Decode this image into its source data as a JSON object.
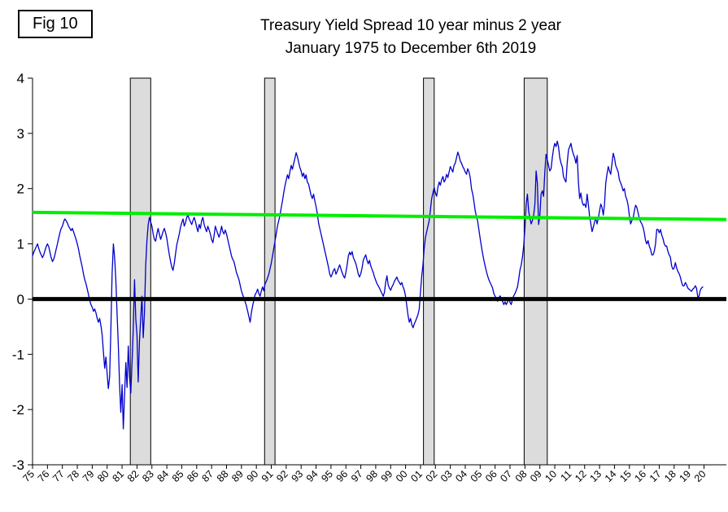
{
  "figure": {
    "label": "Fig 10"
  },
  "chart_data": {
    "type": "line",
    "title": "Treasury Yield Spread 10 year minus 2 year",
    "subtitle": "January 1975 to December 6th 2019",
    "xlabel": "",
    "ylabel": "",
    "grid": false,
    "legend": "none",
    "xlim": [
      1975,
      2021.5
    ],
    "ylim": [
      -3,
      4
    ],
    "y_ticks": [
      -3,
      -2,
      -1,
      0,
      1,
      2,
      3,
      4
    ],
    "y_tick_labels": [
      "-3",
      "-2",
      "-1",
      "0",
      "1",
      "2",
      "3",
      "4"
    ],
    "x_tick_start_year": 1975,
    "x_tick_labels": [
      "75",
      "76",
      "77",
      "78",
      "79",
      "80",
      "81",
      "82",
      "83",
      "84",
      "85",
      "86",
      "87",
      "88",
      "89",
      "90",
      "91",
      "92",
      "93",
      "94",
      "95",
      "96",
      "97",
      "98",
      "99",
      "00",
      "01",
      "02",
      "03",
      "04",
      "05",
      "06",
      "07",
      "08",
      "09",
      "10",
      "11",
      "12",
      "13",
      "14",
      "15",
      "16",
      "17",
      "18",
      "19",
      "20"
    ],
    "colors": {
      "series_blue": "#0000CD",
      "trend_green": "#00EE00",
      "zero_black": "#000000",
      "recession_fill": "#DCDCDC",
      "recession_border": "#000000",
      "axis": "#000000",
      "background": "#FFFFFF"
    },
    "recessions": [
      {
        "start": 1981.55,
        "end": 1982.92
      },
      {
        "start": 1990.55,
        "end": 1991.25
      },
      {
        "start": 2001.2,
        "end": 2001.92
      },
      {
        "start": 2007.95,
        "end": 2009.5
      }
    ],
    "series": [
      {
        "data_name": "spread-series-line",
        "name": "10 year minus 2 year Treasury yield spread",
        "type": "path",
        "color": "#0000CD",
        "width": 1.3,
        "start_year": 1975,
        "points_per_year": 12,
        "values": [
          0.78,
          0.85,
          0.9,
          0.95,
          1.0,
          0.92,
          0.85,
          0.8,
          0.75,
          0.8,
          0.88,
          0.95,
          1.0,
          0.95,
          0.85,
          0.75,
          0.68,
          0.72,
          0.8,
          0.9,
          1.0,
          1.1,
          1.2,
          1.28,
          1.32,
          1.4,
          1.45,
          1.42,
          1.38,
          1.32,
          1.28,
          1.24,
          1.28,
          1.22,
          1.15,
          1.08,
          1.0,
          0.9,
          0.78,
          0.68,
          0.58,
          0.45,
          0.35,
          0.28,
          0.18,
          0.08,
          -0.02,
          -0.1,
          -0.15,
          -0.22,
          -0.18,
          -0.25,
          -0.35,
          -0.42,
          -0.35,
          -0.48,
          -0.65,
          -0.95,
          -1.25,
          -1.05,
          -1.35,
          -1.62,
          -1.4,
          -0.55,
          0.45,
          1.0,
          0.75,
          0.35,
          -0.25,
          -0.85,
          -1.55,
          -2.05,
          -1.55,
          -2.35,
          -1.75,
          -1.15,
          -1.6,
          -0.85,
          -1.4,
          -1.7,
          -1.15,
          -0.55,
          0.35,
          -0.35,
          -0.65,
          -1.5,
          -0.75,
          -0.35,
          0.05,
          -0.7,
          -0.25,
          0.6,
          1.05,
          1.35,
          1.48,
          1.4,
          1.32,
          1.18,
          1.08,
          1.05,
          1.18,
          1.28,
          1.18,
          1.08,
          1.15,
          1.22,
          1.28,
          1.2,
          1.1,
          0.95,
          0.8,
          0.68,
          0.58,
          0.52,
          0.65,
          0.82,
          0.98,
          1.08,
          1.18,
          1.3,
          1.38,
          1.45,
          1.32,
          1.38,
          1.48,
          1.52,
          1.45,
          1.4,
          1.35,
          1.42,
          1.48,
          1.4,
          1.3,
          1.22,
          1.35,
          1.28,
          1.42,
          1.48,
          1.35,
          1.28,
          1.22,
          1.32,
          1.25,
          1.18,
          1.08,
          1.02,
          1.15,
          1.32,
          1.25,
          1.18,
          1.12,
          1.2,
          1.32,
          1.22,
          1.18,
          1.25,
          1.18,
          1.08,
          0.98,
          0.88,
          0.78,
          0.72,
          0.68,
          0.58,
          0.48,
          0.42,
          0.35,
          0.25,
          0.15,
          0.08,
          0.02,
          -0.05,
          -0.12,
          -0.22,
          -0.32,
          -0.42,
          -0.25,
          -0.12,
          -0.02,
          0.08,
          0.12,
          0.18,
          0.1,
          0.05,
          0.15,
          0.22,
          0.15,
          0.28,
          0.32,
          0.38,
          0.45,
          0.55,
          0.65,
          0.78,
          0.92,
          1.05,
          1.18,
          1.32,
          1.42,
          1.52,
          1.65,
          1.78,
          1.92,
          2.05,
          2.15,
          2.25,
          2.18,
          2.3,
          2.42,
          2.35,
          2.45,
          2.55,
          2.65,
          2.58,
          2.48,
          2.38,
          2.32,
          2.22,
          2.28,
          2.18,
          2.25,
          2.12,
          2.08,
          1.98,
          1.88,
          1.82,
          1.9,
          1.78,
          1.68,
          1.55,
          1.38,
          1.28,
          1.18,
          1.08,
          0.98,
          0.88,
          0.78,
          0.68,
          0.58,
          0.45,
          0.4,
          0.45,
          0.52,
          0.55,
          0.45,
          0.5,
          0.56,
          0.62,
          0.55,
          0.48,
          0.42,
          0.38,
          0.48,
          0.62,
          0.78,
          0.85,
          0.8,
          0.86,
          0.75,
          0.7,
          0.64,
          0.55,
          0.45,
          0.4,
          0.46,
          0.56,
          0.7,
          0.76,
          0.8,
          0.7,
          0.64,
          0.7,
          0.6,
          0.54,
          0.48,
          0.4,
          0.34,
          0.28,
          0.24,
          0.2,
          0.15,
          0.1,
          0.05,
          0.12,
          0.3,
          0.42,
          0.26,
          0.2,
          0.16,
          0.22,
          0.26,
          0.32,
          0.36,
          0.4,
          0.34,
          0.3,
          0.26,
          0.3,
          0.22,
          0.16,
          0.05,
          -0.12,
          -0.3,
          -0.42,
          -0.35,
          -0.46,
          -0.52,
          -0.45,
          -0.4,
          -0.34,
          -0.28,
          -0.18,
          0.12,
          0.42,
          0.62,
          0.92,
          1.12,
          1.22,
          1.32,
          1.42,
          1.62,
          1.82,
          1.92,
          2.02,
          1.92,
          1.86,
          2.02,
          2.12,
          2.06,
          2.16,
          2.22,
          2.12,
          2.16,
          2.26,
          2.2,
          2.3,
          2.4,
          2.35,
          2.3,
          2.42,
          2.46,
          2.56,
          2.66,
          2.6,
          2.5,
          2.46,
          2.4,
          2.36,
          2.3,
          2.26,
          2.36,
          2.3,
          2.2,
          2.0,
          1.9,
          1.76,
          1.6,
          1.5,
          1.4,
          1.25,
          1.1,
          0.95,
          0.82,
          0.7,
          0.6,
          0.5,
          0.42,
          0.35,
          0.3,
          0.25,
          0.2,
          0.1,
          0.05,
          0.0,
          -0.04,
          0.02,
          0.06,
          0.0,
          -0.04,
          -0.1,
          -0.05,
          -0.1,
          -0.05,
          0.0,
          -0.06,
          -0.1,
          0.0,
          0.06,
          0.1,
          0.16,
          0.22,
          0.36,
          0.52,
          0.62,
          0.76,
          0.96,
          1.3,
          1.72,
          1.9,
          1.6,
          1.46,
          1.36,
          1.42,
          1.52,
          1.72,
          2.32,
          2.1,
          1.35,
          1.52,
          1.9,
          1.96,
          1.86,
          2.3,
          2.62,
          2.52,
          2.42,
          2.32,
          2.36,
          2.56,
          2.72,
          2.82,
          2.76,
          2.86,
          2.76,
          2.56,
          2.46,
          2.4,
          2.22,
          2.16,
          2.12,
          2.46,
          2.7,
          2.76,
          2.82,
          2.7,
          2.62,
          2.56,
          2.46,
          2.6,
          2.12,
          1.82,
          1.92,
          1.76,
          1.7,
          1.72,
          1.66,
          1.9,
          1.72,
          1.5,
          1.36,
          1.22,
          1.3,
          1.4,
          1.46,
          1.36,
          1.46,
          1.6,
          1.72,
          1.66,
          1.52,
          1.72,
          2.1,
          2.26,
          2.4,
          2.32,
          2.26,
          2.46,
          2.64,
          2.56,
          2.42,
          2.36,
          2.3,
          2.16,
          2.1,
          2.04,
          1.96,
          2.0,
          1.86,
          1.8,
          1.7,
          1.5,
          1.36,
          1.42,
          1.46,
          1.6,
          1.7,
          1.66,
          1.56,
          1.46,
          1.4,
          1.36,
          1.3,
          1.2,
          1.06,
          1.0,
          1.06,
          0.96,
          0.9,
          0.8,
          0.8,
          0.86,
          1.0,
          1.26,
          1.26,
          1.2,
          1.26,
          1.16,
          1.1,
          1.0,
          0.96,
          0.96,
          0.86,
          0.8,
          0.76,
          0.6,
          0.54,
          0.56,
          0.66,
          0.56,
          0.5,
          0.46,
          0.4,
          0.3,
          0.24,
          0.24,
          0.3,
          0.26,
          0.2,
          0.18,
          0.16,
          0.14,
          0.18,
          0.2,
          0.24,
          0.2,
          0.04,
          0.05,
          0.16,
          0.2,
          0.22
        ]
      },
      {
        "data_name": "zero-reference-line",
        "name": "zero line",
        "type": "straight",
        "color": "#000000",
        "width": 5,
        "points": [
          [
            1975,
            0
          ],
          [
            2021.5,
            0
          ]
        ]
      },
      {
        "data_name": "trend-line",
        "name": "trend line",
        "type": "straight",
        "color": "#00EE00",
        "width": 4,
        "points": [
          [
            1975,
            1.57
          ],
          [
            2021.5,
            1.44
          ]
        ]
      }
    ]
  }
}
